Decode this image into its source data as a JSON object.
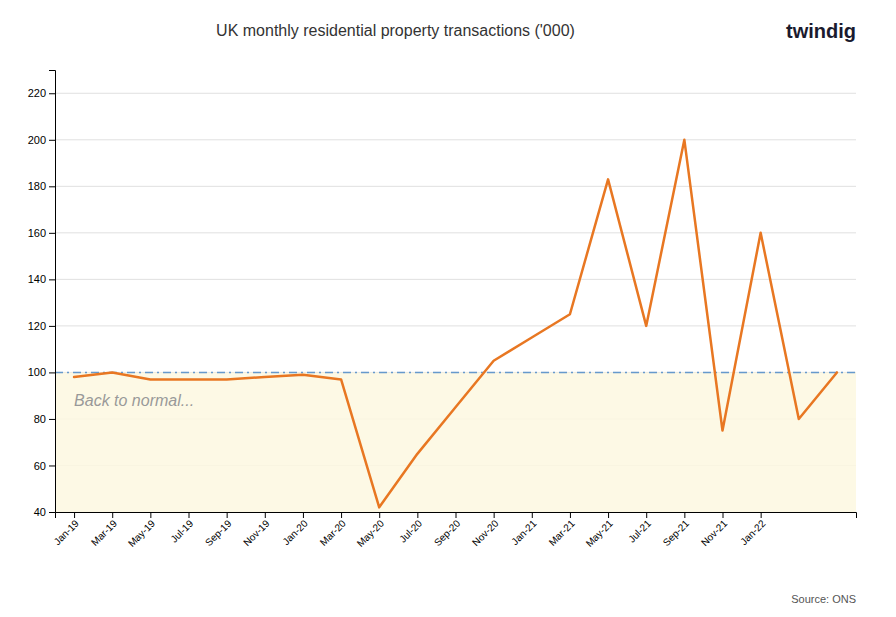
{
  "chart_data": {
    "type": "line",
    "title": "UK monthly residential property transactions ('000)",
    "logo": "twindig",
    "logo_color": "#1a1a2e",
    "source": "Source: ONS",
    "categories": [
      "Jan-19",
      "Mar-19",
      "May-19",
      "Jul-19",
      "Sep-19",
      "Nov-19",
      "Jan-20",
      "Mar-20",
      "May-20",
      "Jul-20",
      "Sep-20",
      "Nov-20",
      "Jan-21",
      "Mar-21",
      "May-21",
      "Jul-21",
      "Sep-21",
      "Nov-21",
      "Jan-22",
      null,
      null
    ],
    "values": [
      98,
      100,
      97,
      97,
      97,
      98,
      99,
      97,
      42,
      65,
      85,
      105,
      115,
      125,
      183,
      120,
      200,
      75,
      160,
      80,
      100
    ],
    "color": "#e87722",
    "ylim": [
      40,
      230
    ],
    "yticks": [
      40,
      60,
      80,
      100,
      120,
      140,
      160,
      180,
      200,
      220
    ],
    "grid": true,
    "reference_line": {
      "value": 100,
      "color": "#6699cc",
      "line_style": "dashdot",
      "shade_color": "#fdf8e1",
      "label": "Back to normal..."
    }
  }
}
